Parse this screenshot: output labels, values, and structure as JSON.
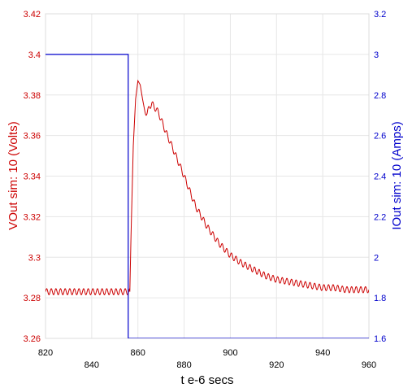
{
  "chart_data": {
    "type": "line",
    "xlabel": "t e-6 secs",
    "ylabel_left": "VOut sim:  10 (Volts)",
    "ylabel_right": "IOut sim:  10 (Amps)",
    "xlim": [
      820,
      960
    ],
    "ylim_left": [
      3.26,
      3.42
    ],
    "ylim_right": [
      1.6,
      3.2
    ],
    "x_ticks": [
      "820",
      "840",
      "860",
      "880",
      "900",
      "920",
      "940",
      "960"
    ],
    "y_ticks_left": [
      "3.26",
      "3.28",
      "3.3",
      "3.32",
      "3.34",
      "3.36",
      "3.38",
      "3.4",
      "3.42"
    ],
    "y_ticks_right": [
      "1.6",
      "1.8",
      "2",
      "2.2",
      "2.4",
      "2.6",
      "2.8",
      "3",
      "3.2"
    ],
    "grid": true,
    "colors": {
      "vout": "#cc0000",
      "iout": "#0000cc",
      "grid": "#e6e6e6"
    },
    "series": [
      {
        "name": "VOut sim:  10 (Volts)",
        "axis": "left",
        "ripple_amplitude": 0.0015,
        "ripple_period": 2.0,
        "x": [
          820,
          856.5,
          857,
          858,
          859,
          860,
          861,
          862,
          863,
          864,
          865,
          866,
          867,
          868,
          869,
          870,
          872,
          875,
          880,
          885,
          890,
          895,
          900,
          905,
          910,
          915,
          920,
          925,
          930,
          935,
          940,
          945,
          950,
          955,
          960
        ],
        "values": [
          3.283,
          3.283,
          3.31,
          3.355,
          3.378,
          3.387,
          3.385,
          3.378,
          3.372,
          3.371,
          3.374,
          3.376,
          3.374,
          3.373,
          3.371,
          3.368,
          3.362,
          3.354,
          3.34,
          3.325,
          3.315,
          3.307,
          3.301,
          3.297,
          3.294,
          3.291,
          3.289,
          3.288,
          3.287,
          3.286,
          3.285,
          3.285,
          3.284,
          3.284,
          3.284
        ]
      },
      {
        "name": "IOut sim:  10 (Amps)",
        "axis": "right",
        "x": [
          820,
          855.8,
          855.8,
          960
        ],
        "values": [
          3.0,
          3.0,
          1.6,
          1.6
        ]
      }
    ]
  }
}
